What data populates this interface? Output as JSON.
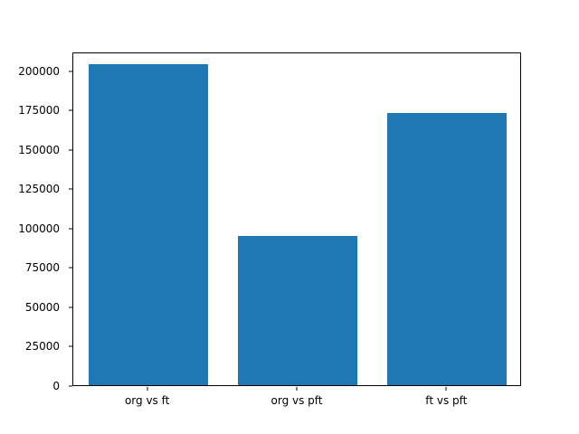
{
  "chart_data": {
    "type": "bar",
    "categories": [
      "org vs ft",
      "org vs pft",
      "ft vs pft"
    ],
    "values": [
      204000,
      95000,
      173000
    ],
    "title": "",
    "xlabel": "",
    "ylabel": "",
    "ylim": [
      0,
      212000
    ],
    "yticks": [
      0,
      25000,
      50000,
      75000,
      100000,
      125000,
      150000,
      175000,
      200000
    ],
    "bar_color": "#1f77b4",
    "grid": false,
    "legend": null
  }
}
